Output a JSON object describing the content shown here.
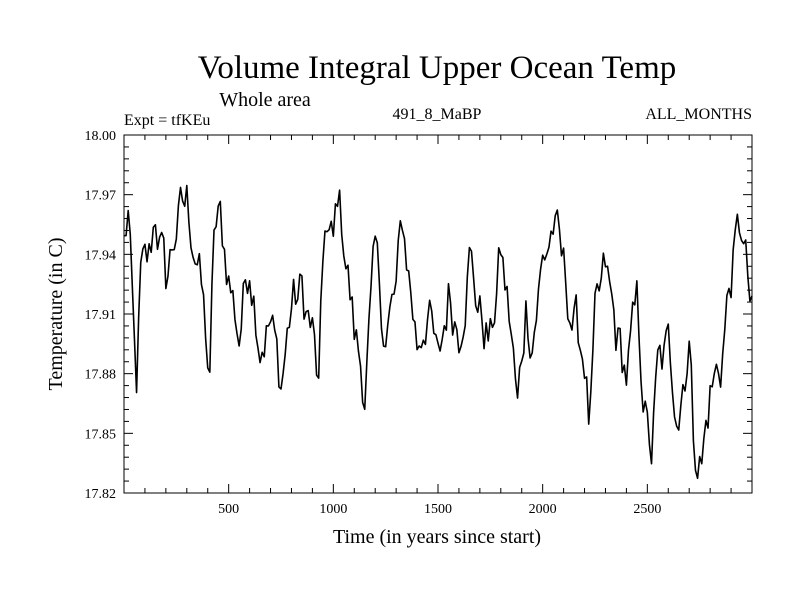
{
  "chart_data": {
    "type": "line",
    "title": "Volume Integral Upper Ocean Temp",
    "subtitle": "Whole area",
    "experiment": "Expt = tfKEu",
    "run_label": "491_8_MaBP",
    "months_label": "ALL_MONTHS",
    "xlabel": "Time (in years since start)",
    "ylabel": "Temperature (in C)",
    "xlim": [
      0,
      3000
    ],
    "ylim": [
      17.82,
      18.0
    ],
    "x_ticks": [
      500,
      1000,
      1500,
      2000,
      2500
    ],
    "x_tick_labels": [
      "500",
      "1000",
      "1500",
      "2000",
      "2500"
    ],
    "y_ticks": [
      17.82,
      17.85,
      17.88,
      17.91,
      17.94,
      17.97,
      18.0
    ],
    "y_tick_labels": [
      "17.82",
      "17.85",
      "17.88",
      "17.91",
      "17.94",
      "17.97",
      "18.00"
    ],
    "grid": false,
    "series": [
      {
        "color": "#000000",
        "x_step": 10,
        "anchors": [
          [
            0,
            17.945
          ],
          [
            20,
            17.96
          ],
          [
            50,
            17.885
          ],
          [
            60,
            17.873
          ],
          [
            80,
            17.925
          ],
          [
            120,
            17.935
          ],
          [
            150,
            17.962
          ],
          [
            200,
            17.925
          ],
          [
            250,
            17.955
          ],
          [
            300,
            17.965
          ],
          [
            350,
            17.94
          ],
          [
            390,
            17.9
          ],
          [
            410,
            17.872
          ],
          [
            430,
            17.95
          ],
          [
            460,
            17.955
          ],
          [
            500,
            17.93
          ],
          [
            550,
            17.9
          ],
          [
            600,
            17.94
          ],
          [
            650,
            17.9
          ],
          [
            700,
            17.905
          ],
          [
            750,
            17.875
          ],
          [
            800,
            17.915
          ],
          [
            850,
            17.92
          ],
          [
            900,
            17.9
          ],
          [
            930,
            17.87
          ],
          [
            960,
            17.955
          ],
          [
            1000,
            17.94
          ],
          [
            1020,
            17.97
          ],
          [
            1050,
            17.95
          ],
          [
            1100,
            17.9
          ],
          [
            1150,
            17.875
          ],
          [
            1200,
            17.935
          ],
          [
            1250,
            17.9
          ],
          [
            1300,
            17.92
          ],
          [
            1330,
            17.955
          ],
          [
            1350,
            17.94
          ],
          [
            1400,
            17.895
          ],
          [
            1450,
            17.915
          ],
          [
            1500,
            17.88
          ],
          [
            1550,
            17.92
          ],
          [
            1600,
            17.905
          ],
          [
            1650,
            17.94
          ],
          [
            1700,
            17.91
          ],
          [
            1750,
            17.895
          ],
          [
            1800,
            17.94
          ],
          [
            1850,
            17.9
          ],
          [
            1880,
            17.86
          ],
          [
            1920,
            17.915
          ],
          [
            1950,
            17.9
          ],
          [
            2000,
            17.935
          ],
          [
            2050,
            17.955
          ],
          [
            2100,
            17.93
          ],
          [
            2150,
            17.905
          ],
          [
            2200,
            17.89
          ],
          [
            2225,
            17.85
          ],
          [
            2250,
            17.9
          ],
          [
            2300,
            17.93
          ],
          [
            2350,
            17.9
          ],
          [
            2400,
            17.88
          ],
          [
            2450,
            17.91
          ],
          [
            2500,
            17.85
          ],
          [
            2520,
            17.84
          ],
          [
            2550,
            17.88
          ],
          [
            2600,
            17.89
          ],
          [
            2650,
            17.865
          ],
          [
            2700,
            17.9
          ],
          [
            2720,
            17.85
          ],
          [
            2760,
            17.835
          ],
          [
            2800,
            17.87
          ],
          [
            2850,
            17.885
          ],
          [
            2900,
            17.93
          ],
          [
            2950,
            17.955
          ],
          [
            2980,
            17.925
          ],
          [
            3000,
            17.905
          ]
        ]
      }
    ]
  }
}
